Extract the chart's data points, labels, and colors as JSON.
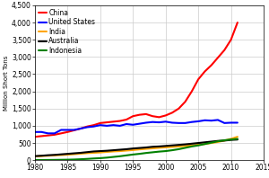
{
  "ylabel": "Million Short Tons",
  "xlim": [
    1980,
    2015
  ],
  "ylim": [
    0,
    4500
  ],
  "yticks": [
    0,
    500,
    1000,
    1500,
    2000,
    2500,
    3000,
    3500,
    4000,
    4500
  ],
  "xticks": [
    1980,
    1985,
    1990,
    1995,
    2000,
    2005,
    2010,
    2015
  ],
  "series": {
    "China": {
      "color": "#ff0000",
      "data": {
        "1980": 680,
        "1981": 700,
        "1982": 720,
        "1983": 740,
        "1984": 780,
        "1985": 820,
        "1986": 870,
        "1987": 920,
        "1988": 980,
        "1989": 1020,
        "1990": 1080,
        "1991": 1100,
        "1992": 1120,
        "1993": 1140,
        "1994": 1180,
        "1995": 1280,
        "1996": 1320,
        "1997": 1340,
        "1998": 1280,
        "1999": 1250,
        "2000": 1300,
        "2001": 1380,
        "2002": 1500,
        "2003": 1700,
        "2004": 2000,
        "2005": 2350,
        "2006": 2580,
        "2007": 2760,
        "2008": 2980,
        "2009": 3200,
        "2010": 3500,
        "2011": 4000
      }
    },
    "United States": {
      "color": "#0000ff",
      "data": {
        "1980": 820,
        "1981": 820,
        "1982": 780,
        "1983": 780,
        "1984": 880,
        "1985": 880,
        "1986": 880,
        "1987": 920,
        "1988": 960,
        "1989": 980,
        "1990": 1020,
        "1991": 1000,
        "1992": 1020,
        "1993": 1000,
        "1994": 1050,
        "1995": 1030,
        "1996": 1060,
        "1997": 1090,
        "1998": 1110,
        "1999": 1100,
        "2000": 1120,
        "2001": 1090,
        "2002": 1080,
        "2003": 1080,
        "2004": 1110,
        "2005": 1130,
        "2006": 1160,
        "2007": 1150,
        "2008": 1170,
        "2009": 1080,
        "2010": 1090,
        "2011": 1090
      }
    },
    "India": {
      "color": "#ffa500",
      "data": {
        "1980": 110,
        "1981": 120,
        "1982": 130,
        "1983": 140,
        "1984": 150,
        "1985": 160,
        "1986": 175,
        "1987": 190,
        "1988": 205,
        "1989": 215,
        "1990": 225,
        "1991": 240,
        "1992": 255,
        "1993": 265,
        "1994": 280,
        "1995": 295,
        "1996": 315,
        "1997": 330,
        "1998": 345,
        "1999": 360,
        "2000": 375,
        "2001": 385,
        "2002": 400,
        "2003": 415,
        "2004": 430,
        "2005": 450,
        "2006": 470,
        "2007": 500,
        "2008": 530,
        "2009": 570,
        "2010": 620,
        "2011": 680
      }
    },
    "Australia": {
      "color": "#000000",
      "data": {
        "1980": 120,
        "1981": 130,
        "1982": 145,
        "1983": 155,
        "1984": 170,
        "1985": 185,
        "1986": 200,
        "1987": 215,
        "1988": 235,
        "1989": 255,
        "1990": 265,
        "1991": 275,
        "1992": 290,
        "1993": 305,
        "1994": 320,
        "1995": 340,
        "1996": 355,
        "1997": 370,
        "1998": 390,
        "1999": 400,
        "2000": 415,
        "2001": 430,
        "2002": 445,
        "2003": 460,
        "2004": 480,
        "2005": 500,
        "2006": 520,
        "2007": 540,
        "2008": 560,
        "2009": 570,
        "2010": 590,
        "2011": 600
      }
    },
    "Indonesia": {
      "color": "#008000",
      "data": {
        "1980": 5,
        "1981": 6,
        "1982": 7,
        "1983": 9,
        "1984": 12,
        "1985": 15,
        "1986": 20,
        "1987": 28,
        "1988": 38,
        "1989": 50,
        "1990": 60,
        "1991": 75,
        "1992": 95,
        "1993": 115,
        "1994": 140,
        "1995": 165,
        "1996": 185,
        "1997": 210,
        "1998": 230,
        "1999": 250,
        "2000": 265,
        "2001": 290,
        "2002": 320,
        "2003": 360,
        "2004": 400,
        "2005": 430,
        "2006": 470,
        "2007": 510,
        "2008": 550,
        "2009": 580,
        "2010": 600,
        "2011": 620
      }
    }
  },
  "background_color": "#ffffff",
  "grid_color": "#cccccc",
  "legend_fontsize": 5.5,
  "tick_fontsize": 5.5,
  "ylabel_fontsize": 5.0,
  "linewidth": 1.5
}
